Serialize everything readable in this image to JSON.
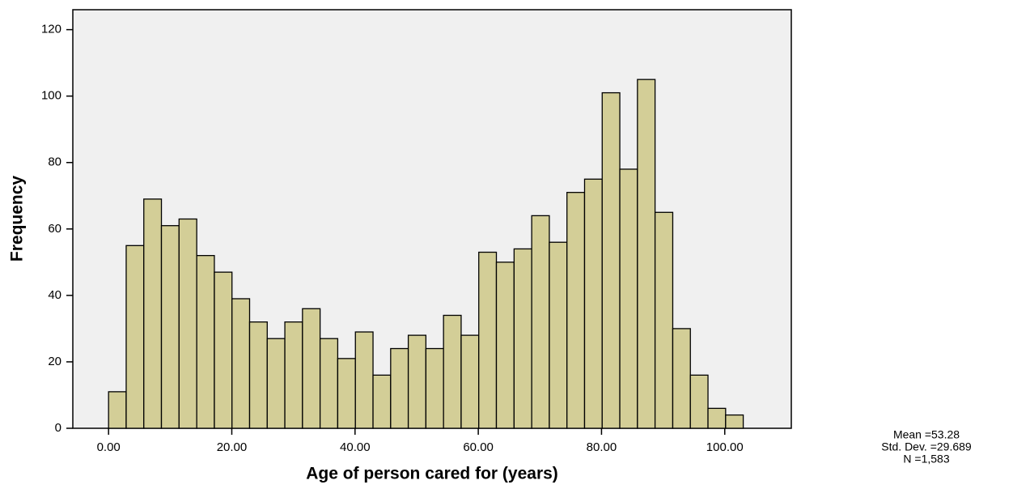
{
  "chart_data": {
    "type": "histogram",
    "x_label": "Age of person cared for (years)",
    "y_label": "Frequency",
    "bins": [
      0,
      2.86,
      5.72,
      8.58,
      11.44,
      14.31,
      17.17,
      20.03,
      22.89,
      25.75,
      28.61,
      31.47,
      34.33,
      37.19,
      40.06,
      42.92,
      45.78,
      48.64,
      51.5,
      54.36,
      57.22,
      60.08,
      62.94,
      65.81,
      68.67,
      71.53,
      74.39,
      77.25,
      80.11,
      82.97,
      85.83,
      88.69,
      91.56,
      94.42,
      97.28,
      100.14,
      103
    ],
    "counts": [
      11,
      55,
      69,
      61,
      63,
      52,
      47,
      39,
      32,
      27,
      32,
      36,
      27,
      21,
      29,
      16,
      24,
      28,
      24,
      34,
      28,
      53,
      50,
      54,
      64,
      56,
      71,
      75,
      101,
      78,
      105,
      65,
      30,
      16,
      6,
      4
    ],
    "color": "#d3ce97",
    "xlim": [
      -5.8,
      110.8
    ],
    "ylim": [
      0,
      126
    ],
    "xticks": [
      {
        "value": 0,
        "label": "0.00"
      },
      {
        "value": 20,
        "label": "20.00"
      },
      {
        "value": 40,
        "label": "40.00"
      },
      {
        "value": 60,
        "label": "60.00"
      },
      {
        "value": 80,
        "label": "80.00"
      },
      {
        "value": 100,
        "label": "100.00"
      }
    ],
    "yticks": [
      0,
      20,
      40,
      60,
      80,
      100,
      120
    ],
    "stats": [
      "Mean =53.28",
      "Std. Dev. =29.689",
      "N =1,583"
    ]
  }
}
